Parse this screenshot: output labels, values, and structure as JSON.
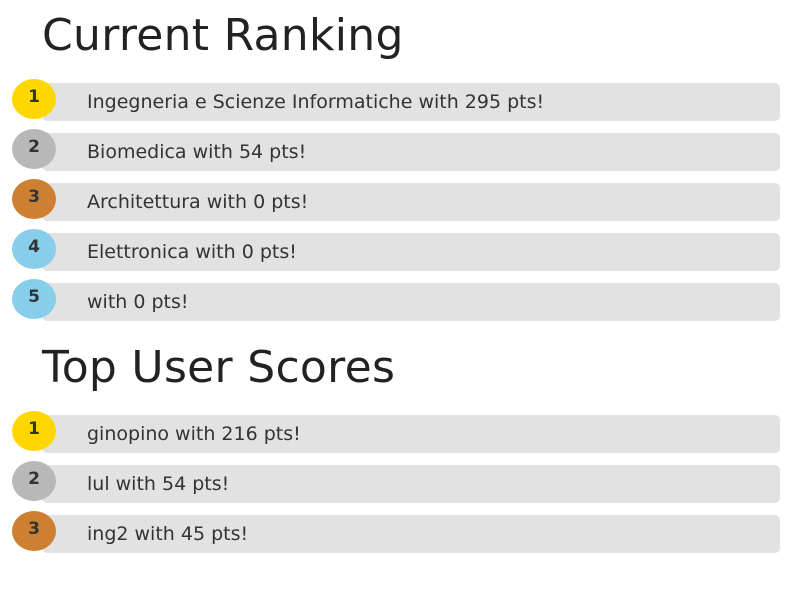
{
  "colors": {
    "gold": "#ffd700",
    "silver": "#b8b8b8",
    "bronze": "#cd7f32",
    "blue": "#87ceeb",
    "bar": "#e2e2e2"
  },
  "ranking": {
    "title": "Current Ranking",
    "items": [
      {
        "rank": "1",
        "text": "Ingegneria e Scienze Informatiche with 295 pts!",
        "color": "#ffd700"
      },
      {
        "rank": "2",
        "text": "Biomedica with 54 pts!",
        "color": "#b8b8b8"
      },
      {
        "rank": "3",
        "text": "Architettura with 0 pts!",
        "color": "#cd7f32"
      },
      {
        "rank": "4",
        "text": "Elettronica with 0 pts!",
        "color": "#87ceeb"
      },
      {
        "rank": "5",
        "text": " with 0 pts!",
        "color": "#87ceeb"
      }
    ]
  },
  "users": {
    "title": "Top User Scores",
    "items": [
      {
        "rank": "1",
        "text": "ginopino with 216 pts!",
        "color": "#ffd700"
      },
      {
        "rank": "2",
        "text": "lul with 54 pts!",
        "color": "#b8b8b8"
      },
      {
        "rank": "3",
        "text": "ing2 with 45 pts!",
        "color": "#cd7f32"
      }
    ]
  }
}
